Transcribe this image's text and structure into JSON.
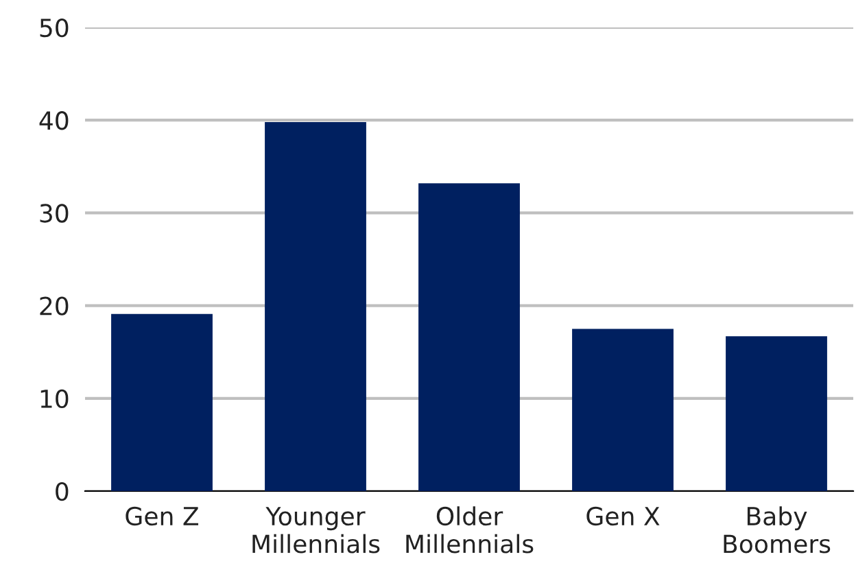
{
  "chart_data": {
    "type": "bar",
    "categories": [
      "Gen Z",
      "Younger\nMillennials",
      "Older\nMillennials",
      "Gen X",
      "Baby\nBoomers"
    ],
    "values": [
      19.1,
      39.8,
      33.2,
      17.5,
      16.7
    ],
    "color": "#002060",
    "ylim": [
      0,
      50
    ],
    "yticks": [
      0,
      10,
      20,
      30,
      40,
      50
    ],
    "grid": "y"
  }
}
